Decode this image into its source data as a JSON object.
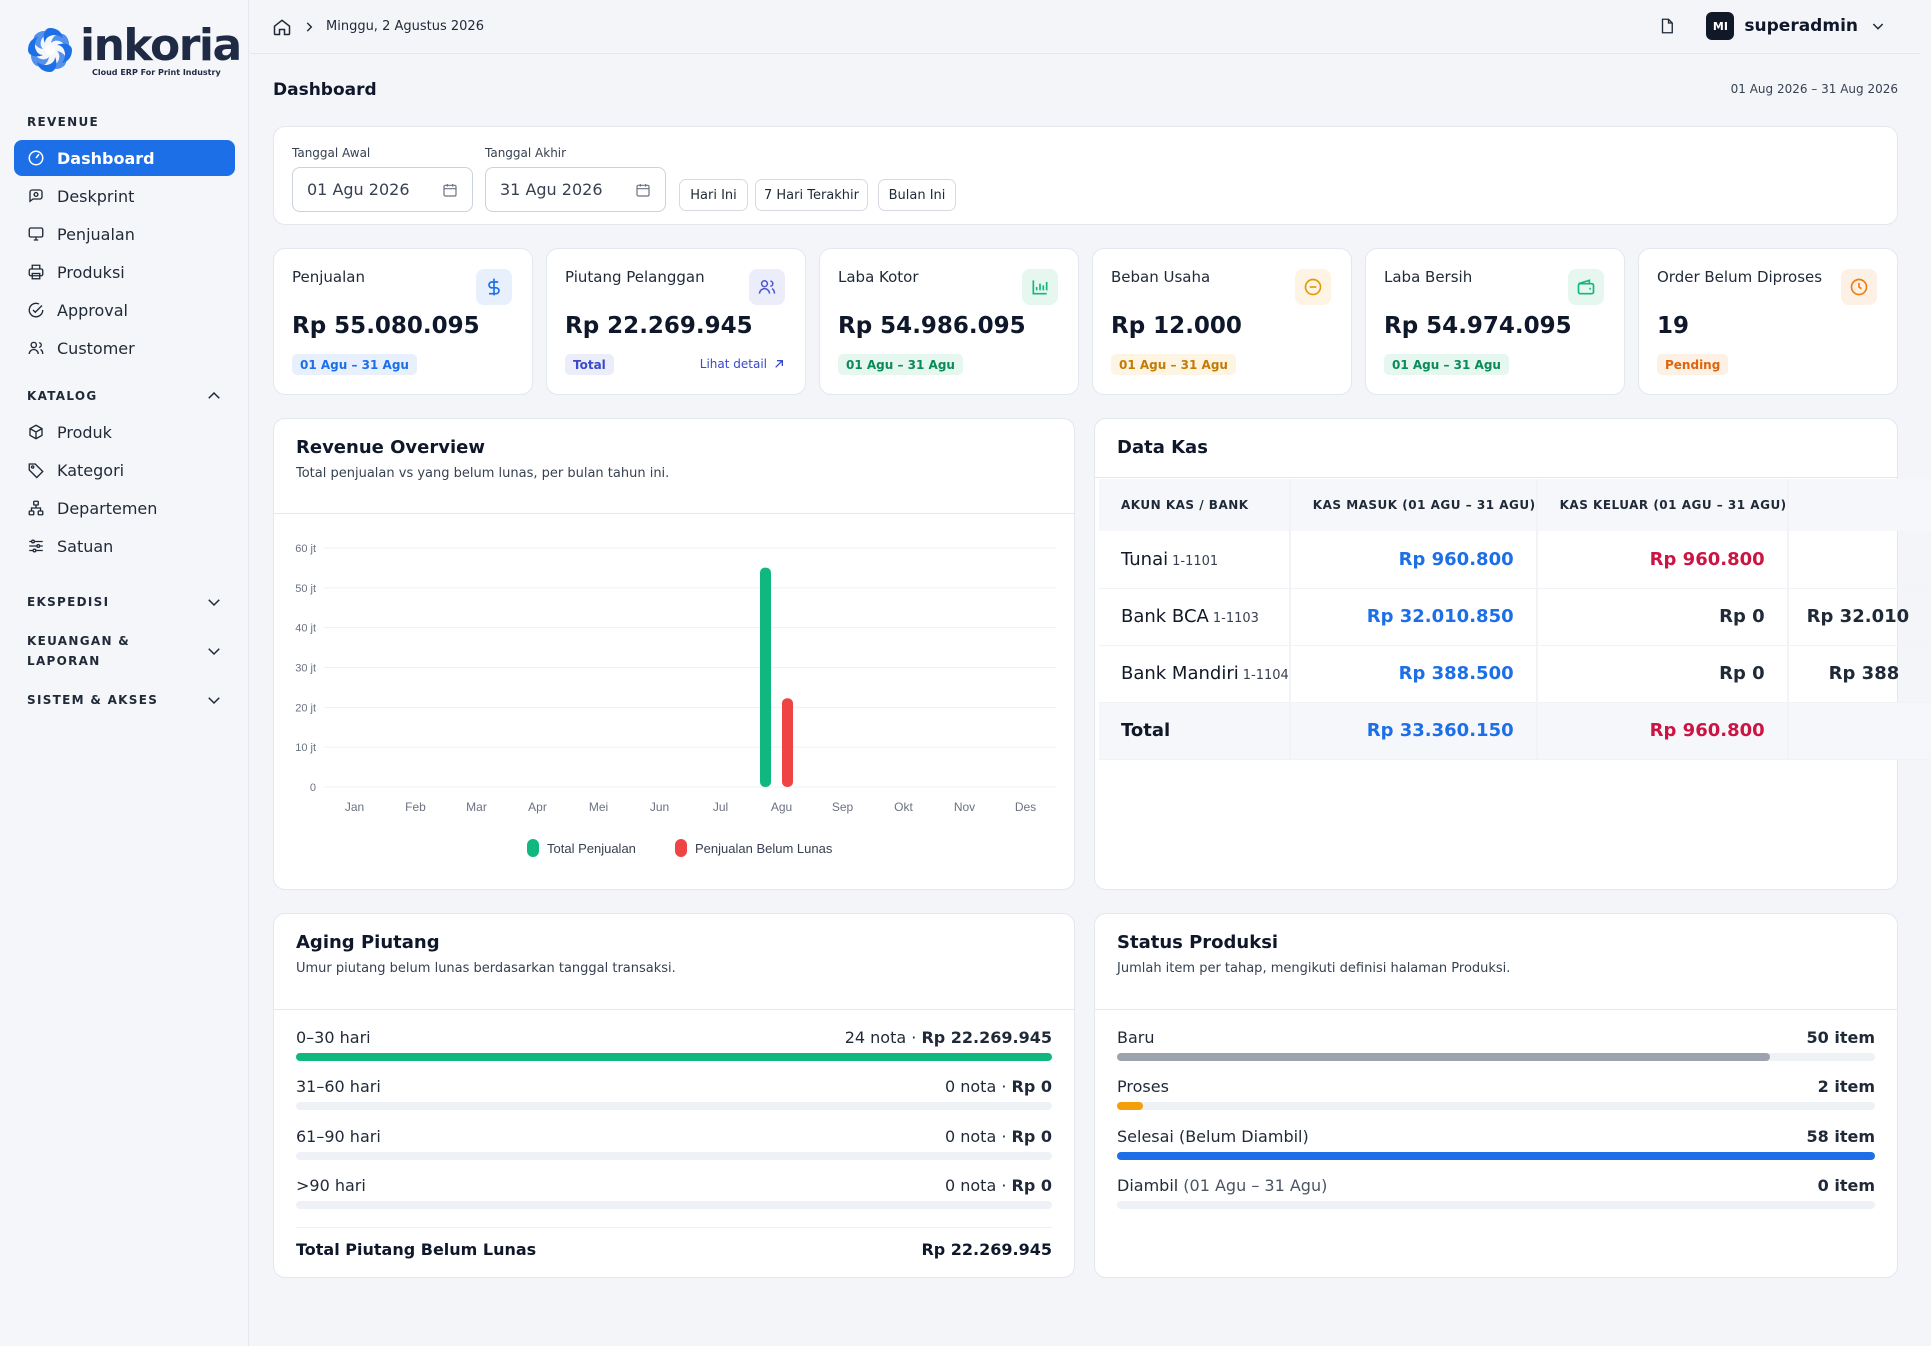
{
  "brand": {
    "name": "inkoria",
    "tagline": "Cloud ERP For Print Industry",
    "accent": "#1d6fe8"
  },
  "sidebar": {
    "sections": [
      {
        "label": "REVENUE",
        "items": [
          "Dashboard",
          "Deskprint",
          "Penjualan",
          "Produksi",
          "Approval",
          "Customer"
        ]
      },
      {
        "label": "KATALOG",
        "items": [
          "Produk",
          "Kategori",
          "Departemen",
          "Satuan"
        ]
      },
      {
        "label": "EKSPEDISI"
      },
      {
        "label": "KEUANGAN & LAPORAN"
      },
      {
        "label": "SISTEM & AKSES"
      }
    ],
    "active": "Dashboard"
  },
  "topbar": {
    "date": "Minggu, 2 Agustus 2026",
    "avatar_initials": "MI",
    "username": "superadmin"
  },
  "page": {
    "title": "Dashboard",
    "range": "01 Aug 2026 – 31 Aug 2026"
  },
  "filter": {
    "start_label": "Tanggal Awal",
    "start_value": "01 Agu 2026",
    "end_label": "Tanggal Akhir",
    "end_value": "31 Agu 2026",
    "quick": [
      "Hari Ini",
      "7 Hari Terakhir",
      "Bulan Ini"
    ]
  },
  "stats": [
    {
      "label": "Penjualan",
      "value": "Rp 55.080.095",
      "badge": "01 Agu – 31 Agu",
      "icon": "dollar-icon"
    },
    {
      "label": "Piutang Pelanggan",
      "value": "Rp 22.269.945",
      "badge": "Total",
      "link": "Lihat detail",
      "icon": "users-icon"
    },
    {
      "label": "Laba Kotor",
      "value": "Rp 54.986.095",
      "badge": "01 Agu – 31 Agu",
      "icon": "bar-chart-icon"
    },
    {
      "label": "Beban Usaha",
      "value": "Rp 12.000",
      "badge": "01 Agu – 31 Agu",
      "icon": "minus-circle-icon"
    },
    {
      "label": "Laba Bersih",
      "value": "Rp 54.974.095",
      "badge": "01 Agu – 31 Agu",
      "icon": "wallet-icon"
    },
    {
      "label": "Order Belum Diproses",
      "value": "19",
      "badge": "Pending",
      "icon": "clock-icon"
    }
  ],
  "revenue": {
    "title": "Revenue Overview",
    "subtitle": "Total penjualan vs yang belum lunas, per bulan tahun ini."
  },
  "chart_data": {
    "type": "bar",
    "categories": [
      "Jan",
      "Feb",
      "Mar",
      "Apr",
      "Mei",
      "Jun",
      "Jul",
      "Agu",
      "Sep",
      "Okt",
      "Nov",
      "Des"
    ],
    "series": [
      {
        "name": "Total Penjualan",
        "color": "#10b77f",
        "values": [
          0,
          0,
          0,
          0,
          0,
          0,
          0,
          55.08,
          0,
          0,
          0,
          0
        ]
      },
      {
        "name": "Penjualan Belum Lunas",
        "color": "#ef4444",
        "values": [
          0,
          0,
          0,
          0,
          0,
          0,
          0,
          22.27,
          0,
          0,
          0,
          0
        ]
      }
    ],
    "ylim": [
      0,
      60
    ],
    "yticks": [
      "0",
      "10 jt",
      "20 jt",
      "30 jt",
      "40 jt",
      "50 jt",
      "60 jt"
    ],
    "legend": "bottom",
    "grid": true
  },
  "kas": {
    "title": "Data Kas",
    "headers": [
      "AKUN KAS / BANK",
      "KAS MASUK (01 AGU – 31 AGU)",
      "KAS KELUAR (01 AGU – 31 AGU)"
    ],
    "rows": [
      {
        "name": "Tunai",
        "code": "1-1101",
        "masuk": "Rp 960.800",
        "keluar": "Rp 960.800",
        "saldo": ""
      },
      {
        "name": "Bank BCA",
        "code": "1-1103",
        "masuk": "Rp 32.010.850",
        "keluar": "Rp 0",
        "saldo": "Rp 32.010"
      },
      {
        "name": "Bank Mandiri",
        "code": "1-1104",
        "masuk": "Rp 388.500",
        "keluar": "Rp 0",
        "saldo": "Rp 388"
      }
    ],
    "total": {
      "label": "Total",
      "masuk": "Rp 33.360.150",
      "keluar": "Rp 960.800"
    }
  },
  "aging": {
    "title": "Aging Piutang",
    "subtitle": "Umur piutang belum lunas berdasarkan tanggal transaksi.",
    "rows": [
      {
        "label": "0–30 hari",
        "count": "24 nota",
        "amount": "Rp 22.269.945",
        "fraction": 1.0
      },
      {
        "label": "31–60 hari",
        "count": "0 nota",
        "amount": "Rp 0",
        "fraction": 0
      },
      {
        "label": "61–90 hari",
        "count": "0 nota",
        "amount": "Rp 0",
        "fraction": 0
      },
      {
        "label": ">90 hari",
        "count": "0 nota",
        "amount": "Rp 0",
        "fraction": 0
      }
    ],
    "total_label": "Total Piutang Belum Lunas",
    "total_value": "Rp 22.269.945"
  },
  "status": {
    "title": "Status Produksi",
    "subtitle": "Jumlah item per tahap, mengikuti definisi halaman Produksi.",
    "rows": [
      {
        "label": "Baru",
        "extra": "",
        "value": "50 item",
        "fraction": 0.862,
        "color": "#9ca3af"
      },
      {
        "label": "Proses",
        "extra": "",
        "value": "2 item",
        "fraction": 0.034,
        "color": "#f59e0b"
      },
      {
        "label": "Selesai (Belum Diambil)",
        "extra": "",
        "value": "58 item",
        "fraction": 1.0,
        "color": "#1d6fe8"
      },
      {
        "label": "Diambil",
        "extra": "(01 Agu – 31 Agu)",
        "value": "0 item",
        "fraction": 0,
        "color": "#9ca3af"
      }
    ]
  }
}
